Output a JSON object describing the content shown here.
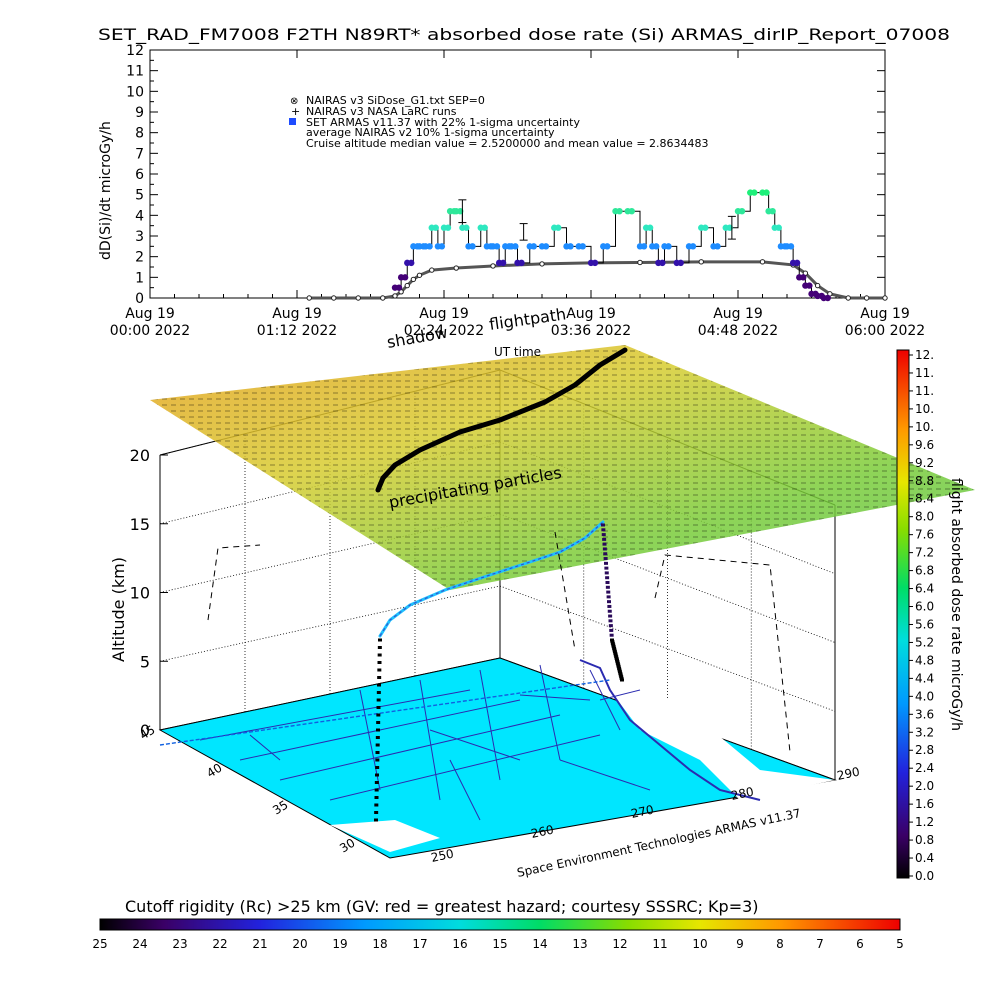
{
  "title": "SET_RAD_FM7008  F2TH N89RT* absorbed dose rate (Si) ARMAS_dirIP_Report_07008",
  "chart_data": [
    {
      "type": "scatter",
      "xlabel": "UT time",
      "ylabel": "dD(Si)/dt microGy/h",
      "ylim": [
        0,
        12
      ],
      "yticks": [
        "0",
        "1",
        "2",
        "3",
        "4",
        "5",
        "6",
        "7",
        "8",
        "9",
        "10",
        "11",
        "12"
      ],
      "xticks": [
        {
          "day": "Aug 19",
          "time": "00:00 2022"
        },
        {
          "day": "Aug 19",
          "time": "01:12 2022"
        },
        {
          "day": "Aug 19",
          "time": "02:24 2022"
        },
        {
          "day": "Aug 19",
          "time": "03:36 2022"
        },
        {
          "day": "Aug 19",
          "time": "04:48 2022"
        },
        {
          "day": "Aug 19",
          "time": "06:00 2022"
        }
      ],
      "legend": [
        {
          "text": "NAIRAS v3 SiDose_G1.txt SEP=0",
          "marker": "⊗"
        },
        {
          "text": "NAIRAS v3 NASA LaRC runs",
          "marker": "+"
        },
        {
          "text": "SET ARMAS v11.37 with 22% 1-sigma uncertainty",
          "marker": "■"
        },
        {
          "text": "average NAIRAS v2 10% 1-sigma uncertainty",
          "marker": ""
        },
        {
          "text": "Cruise altitude median value = 2.5200000 and mean value = 2.8634483",
          "marker": ""
        }
      ],
      "nairas_series": {
        "name": "NAIRAS v3 SiDose_G1.txt SEP=0",
        "x_hours": [
          1.3,
          1.5,
          1.7,
          1.9,
          2.0,
          2.05,
          2.1,
          2.15,
          2.2,
          2.3,
          2.5,
          2.8,
          3.2,
          3.6,
          4.0,
          4.5,
          5.0,
          5.25,
          5.35,
          5.45,
          5.55,
          5.7,
          5.85,
          6.0
        ],
        "y": [
          0,
          0,
          0,
          0,
          0.1,
          0.3,
          0.6,
          0.9,
          1.1,
          1.35,
          1.45,
          1.55,
          1.65,
          1.7,
          1.72,
          1.75,
          1.75,
          1.6,
          1.2,
          0.6,
          0.2,
          0,
          0,
          0
        ]
      },
      "armas_series": {
        "name": "SET ARMAS v11.37 with 22% 1-sigma uncertainty",
        "x_hours": [
          2.0,
          2.05,
          2.1,
          2.15,
          2.2,
          2.25,
          2.3,
          2.35,
          2.4,
          2.45,
          2.5,
          2.55,
          2.6,
          2.7,
          2.75,
          2.8,
          2.85,
          2.9,
          2.95,
          3.0,
          3.1,
          3.2,
          3.3,
          3.4,
          3.5,
          3.6,
          3.7,
          3.8,
          3.9,
          4.0,
          4.05,
          4.1,
          4.15,
          4.2,
          4.3,
          4.4,
          4.5,
          4.6,
          4.7,
          4.8,
          4.9,
          5.0,
          5.05,
          5.1,
          5.15,
          5.2,
          5.25,
          5.3,
          5.35,
          5.4,
          5.45,
          5.5
        ],
        "y": [
          0.5,
          1.0,
          1.7,
          2.5,
          2.5,
          2.5,
          3.4,
          2.5,
          3.4,
          4.2,
          4.2,
          3.4,
          2.5,
          3.4,
          2.5,
          2.5,
          1.7,
          2.5,
          2.5,
          1.7,
          2.5,
          2.5,
          3.4,
          2.5,
          2.5,
          1.7,
          2.5,
          4.2,
          4.2,
          2.5,
          3.4,
          2.5,
          1.7,
          2.5,
          1.7,
          2.5,
          3.4,
          2.5,
          3.4,
          4.2,
          5.1,
          5.1,
          4.2,
          3.4,
          2.5,
          2.5,
          1.7,
          1.0,
          0.6,
          0.2,
          0.1,
          0
        ]
      }
    },
    {
      "type": "scatter",
      "zlabel": "Altitude (km)",
      "ztick_labels": [
        "0",
        "5",
        "10",
        "15",
        "20"
      ],
      "lat_tick_labels": [
        "45",
        "40",
        "35",
        "30"
      ],
      "lon_tick_labels": [
        "250",
        "260",
        "270",
        "280",
        "290"
      ],
      "annotations": {
        "flightpath": "flightpath",
        "shadow": "shadow",
        "precipitating": "precipitating particles"
      },
      "credit": "Space Environment Technologies ARMAS v11.37"
    }
  ],
  "colorbar_right": {
    "label": "flight absorbed dose rate microGy/h",
    "ticks": [
      "12.",
      "11.",
      "11.",
      "10.",
      "10.",
      "9.6",
      "9.2",
      "8.8",
      "8.4",
      "8.0",
      "7.6",
      "7.2",
      "6.8",
      "6.4",
      "6.0",
      "5.6",
      "5.2",
      "4.8",
      "4.4",
      "4.0",
      "3.6",
      "3.2",
      "2.8",
      "2.4",
      "2.0",
      "1.6",
      "1.2",
      "0.8",
      "0.4",
      "0.0"
    ]
  },
  "colorbar_bottom": {
    "label": "Cutoff rigidity (Rc) >25 km (GV: red = greatest hazard; courtesy SSSRC; Kp=3)",
    "ticks": [
      "25",
      "24",
      "23",
      "22",
      "21",
      "20",
      "19",
      "18",
      "17",
      "16",
      "15",
      "14",
      "13",
      "12",
      "11",
      "10",
      "9",
      "8",
      "7",
      "6",
      "5"
    ]
  },
  "colors": {
    "nairas": "#555555",
    "armas_low": "#3311aa",
    "armas_mid": "#1e8cff",
    "armas_high": "#2ee89a",
    "map_fill": "#00e6ff",
    "coast": "#2b2bb0"
  }
}
